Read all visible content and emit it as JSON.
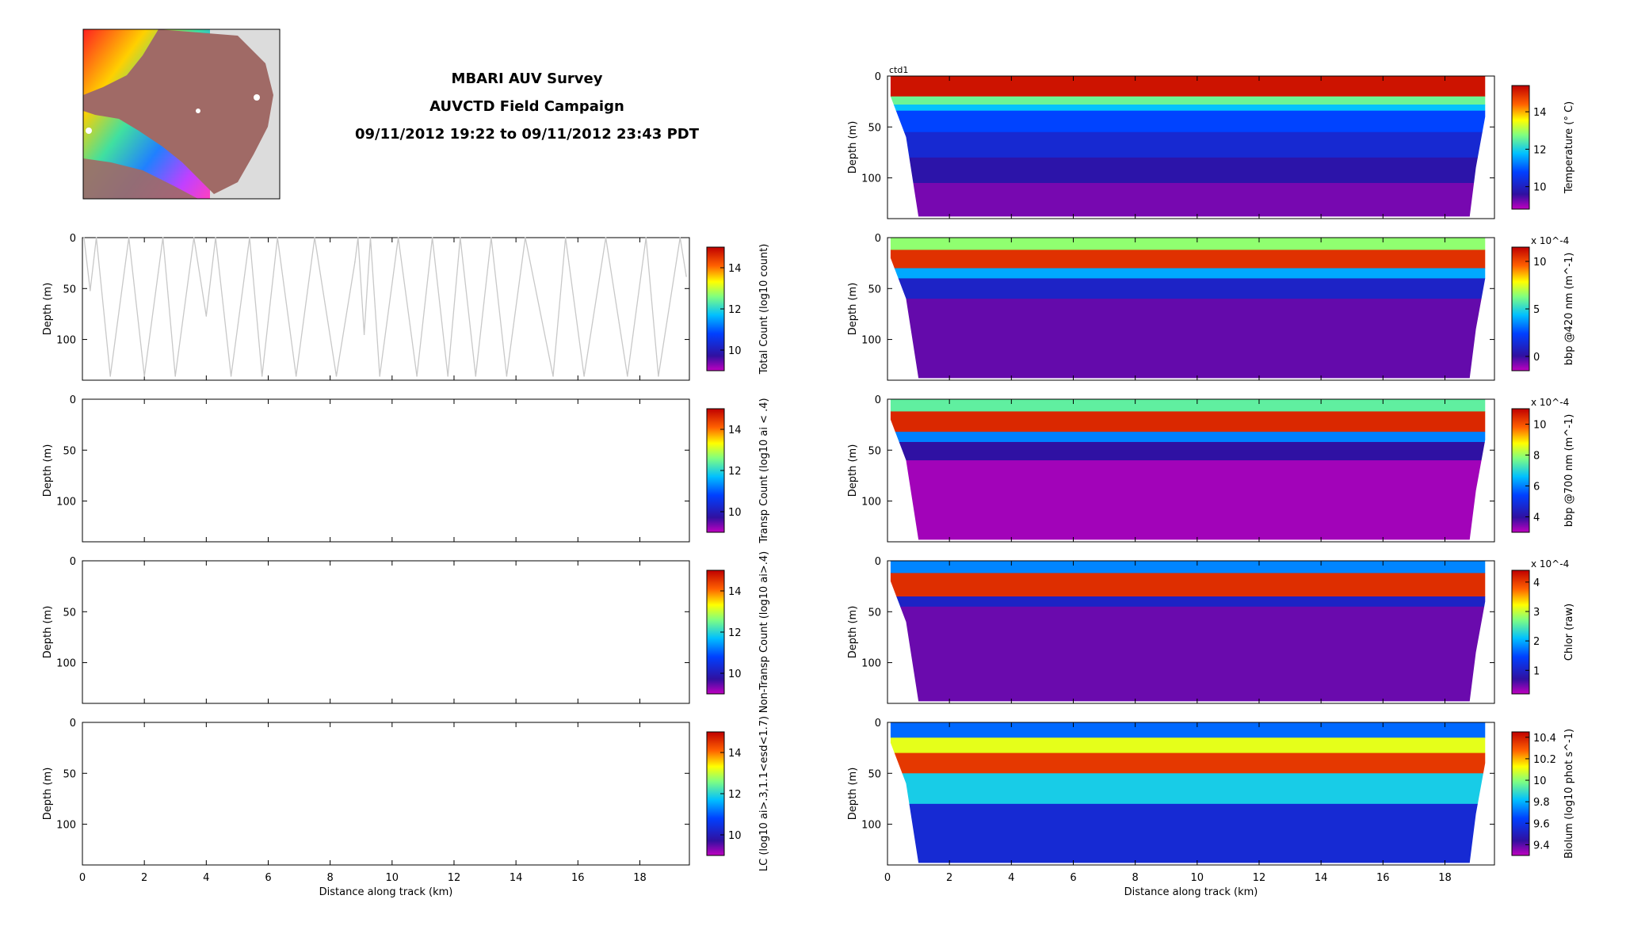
{
  "header": {
    "title": "MBARI AUV Survey",
    "subtitle": "AUVCTD Field Campaign",
    "date_range": "09/11/2012 19:22 to 09/11/2012 23:43 PDT"
  },
  "colors": {
    "map_land": "#a06a66",
    "map_background": "#dcdcdc",
    "track_line": "#c8c8c8"
  },
  "axes_common": {
    "xlabel": "Distance along track (km)",
    "ylabel": "Depth (m)",
    "x_ticks": [
      0,
      2,
      4,
      6,
      8,
      10,
      12,
      14,
      16,
      18
    ],
    "y_ticks": [
      0,
      50,
      100
    ],
    "xlim": [
      0,
      19.6
    ],
    "ylim": [
      140,
      0
    ]
  },
  "chart_data": [
    {
      "type": "line",
      "panel": "left-1",
      "colorbar_label": "Total Count (log10 count)",
      "colorbar_ticks": [
        "10",
        "12",
        "14"
      ],
      "clim": [
        9,
        15
      ],
      "description_series": "AUV yo-yo track",
      "x": [
        0.05,
        0.25,
        0.45,
        0.9,
        1.5,
        2.0,
        2.6,
        3.0,
        3.6,
        4.0,
        4.3,
        4.8,
        5.4,
        5.8,
        6.3,
        6.9,
        7.5,
        8.2,
        8.8,
        8.9,
        9.1,
        9.3,
        9.6,
        10.2,
        10.8,
        11.3,
        11.8,
        12.2,
        12.7,
        13.2,
        13.7,
        14.3,
        15.2,
        15.6,
        16.2,
        16.9,
        17.6,
        18.2,
        18.6,
        19.3,
        19.5
      ],
      "y": [
        0,
        52,
        0,
        136,
        0,
        136,
        0,
        136,
        0,
        77,
        0,
        136,
        0,
        136,
        0,
        136,
        0,
        136,
        24,
        0,
        95,
        0,
        136,
        0,
        136,
        0,
        136,
        0,
        136,
        0,
        136,
        0,
        136,
        0,
        136,
        0,
        136,
        0,
        136,
        0,
        38
      ]
    },
    {
      "type": "line",
      "panel": "left-2",
      "colorbar_label": "Transp Count (log10 ai < .4)",
      "colorbar_ticks": [
        "10",
        "12",
        "14"
      ],
      "clim": [
        9,
        15
      ],
      "x": [],
      "y": []
    },
    {
      "type": "line",
      "panel": "left-3",
      "colorbar_label": "Non-Transp Count (log10 ai>.4)",
      "colorbar_ticks": [
        "10",
        "12",
        "14"
      ],
      "clim": [
        9,
        15
      ],
      "x": [],
      "y": []
    },
    {
      "type": "line",
      "panel": "left-4",
      "colorbar_label": "LC (log10 ai>.3,1.1<esd<1.7)",
      "colorbar_ticks": [
        "10",
        "12",
        "14"
      ],
      "clim": [
        9,
        15
      ],
      "x": [],
      "y": []
    },
    {
      "type": "heatmap",
      "panel": "right-1",
      "tag": "ctd1",
      "colorbar_label": "Temperature (° C)",
      "colorbar_ticks": [
        "10",
        "12",
        "14"
      ],
      "clim": [
        8.8,
        15.4
      ],
      "layers": [
        {
          "depth_top": 0,
          "depth_bottom": 20,
          "value": 15.2
        },
        {
          "depth_top": 20,
          "depth_bottom": 28,
          "value": 12.6
        },
        {
          "depth_top": 28,
          "depth_bottom": 34,
          "value": 11.8
        },
        {
          "depth_top": 34,
          "depth_bottom": 55,
          "value": 10.8
        },
        {
          "depth_top": 55,
          "depth_bottom": 80,
          "value": 10.2
        },
        {
          "depth_top": 80,
          "depth_bottom": 105,
          "value": 9.7
        },
        {
          "depth_top": 105,
          "depth_bottom": 140,
          "value": 9.2
        }
      ]
    },
    {
      "type": "heatmap",
      "panel": "right-2",
      "colorbar_label": "bbp @420 nm (m^-1)",
      "colorbar_exponent": "x 10^-4",
      "colorbar_ticks": [
        "0",
        "5",
        "10"
      ],
      "clim": [
        -1.5,
        11.5
      ],
      "layers": [
        {
          "depth_top": 0,
          "depth_bottom": 12,
          "value": 6.5
        },
        {
          "depth_top": 12,
          "depth_bottom": 30,
          "value": 10.5
        },
        {
          "depth_top": 30,
          "depth_bottom": 40,
          "value": 4.0
        },
        {
          "depth_top": 40,
          "depth_bottom": 60,
          "value": 1.0
        },
        {
          "depth_top": 60,
          "depth_bottom": 140,
          "value": -0.5
        }
      ]
    },
    {
      "type": "heatmap",
      "panel": "right-3",
      "colorbar_label": "bbp @700 nm (m^-1)",
      "colorbar_exponent": "x 10^-4",
      "colorbar_ticks": [
        "4",
        "6",
        "8",
        "10"
      ],
      "clim": [
        3,
        11
      ],
      "layers": [
        {
          "depth_top": 0,
          "depth_bottom": 12,
          "value": 7.5
        },
        {
          "depth_top": 12,
          "depth_bottom": 32,
          "value": 10.5
        },
        {
          "depth_top": 32,
          "depth_bottom": 42,
          "value": 6.0
        },
        {
          "depth_top": 42,
          "depth_bottom": 60,
          "value": 4.0
        },
        {
          "depth_top": 60,
          "depth_bottom": 140,
          "value": 3.2
        }
      ]
    },
    {
      "type": "heatmap",
      "panel": "right-4",
      "colorbar_label": "Chlor (raw)",
      "colorbar_exponent": "x 10^-4",
      "colorbar_ticks": [
        "1",
        "2",
        "3",
        "4"
      ],
      "clim": [
        0.2,
        4.4
      ],
      "layers": [
        {
          "depth_top": 0,
          "depth_bottom": 12,
          "value": 1.8
        },
        {
          "depth_top": 12,
          "depth_bottom": 35,
          "value": 4.1
        },
        {
          "depth_top": 35,
          "depth_bottom": 45,
          "value": 1.0
        },
        {
          "depth_top": 45,
          "depth_bottom": 140,
          "value": 0.5
        }
      ]
    },
    {
      "type": "heatmap",
      "panel": "right-5",
      "colorbar_label": "Biolum (log10 phot s^-1)",
      "colorbar_ticks": [
        "9.4",
        "9.6",
        "9.8",
        "10",
        "10.2",
        "10.4"
      ],
      "clim": [
        9.3,
        10.45
      ],
      "layers": [
        {
          "depth_top": 0,
          "depth_bottom": 15,
          "value": 9.7
        },
        {
          "depth_top": 15,
          "depth_bottom": 30,
          "value": 10.1
        },
        {
          "depth_top": 30,
          "depth_bottom": 50,
          "value": 10.35
        },
        {
          "depth_top": 50,
          "depth_bottom": 80,
          "value": 9.85
        },
        {
          "depth_top": 80,
          "depth_bottom": 140,
          "value": 9.55
        }
      ]
    }
  ]
}
